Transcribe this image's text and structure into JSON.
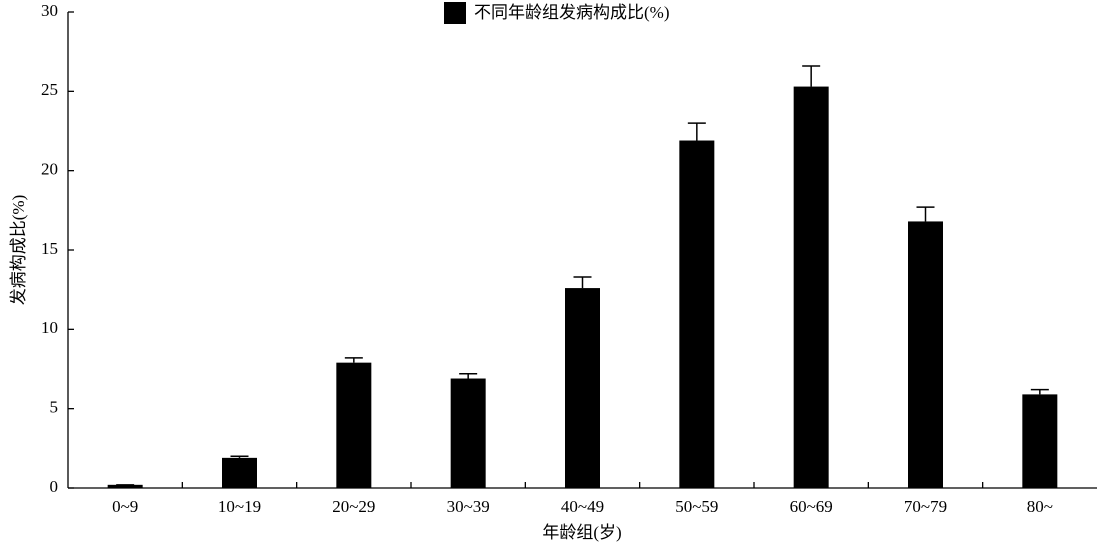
{
  "chart_data": {
    "type": "bar",
    "xlabel": "年龄组(岁)",
    "ylabel": "发病构成比(%)",
    "categories": [
      "0~9",
      "10~19",
      "20~29",
      "30~39",
      "40~49",
      "50~59",
      "60~69",
      "70~79",
      "80~"
    ],
    "series": [
      {
        "name": "不同年龄组发病构成比(%)",
        "color": "#000000",
        "values": [
          0.2,
          1.9,
          7.9,
          6.9,
          12.6,
          21.9,
          25.3,
          16.8,
          5.9
        ],
        "errors": [
          0,
          0.1,
          0.3,
          0.3,
          0.7,
          1.1,
          1.3,
          0.9,
          0.3
        ]
      }
    ],
    "ylim": [
      0,
      30
    ],
    "yticks": [
      0,
      5,
      10,
      15,
      20,
      25,
      30
    ],
    "legend": "top"
  }
}
